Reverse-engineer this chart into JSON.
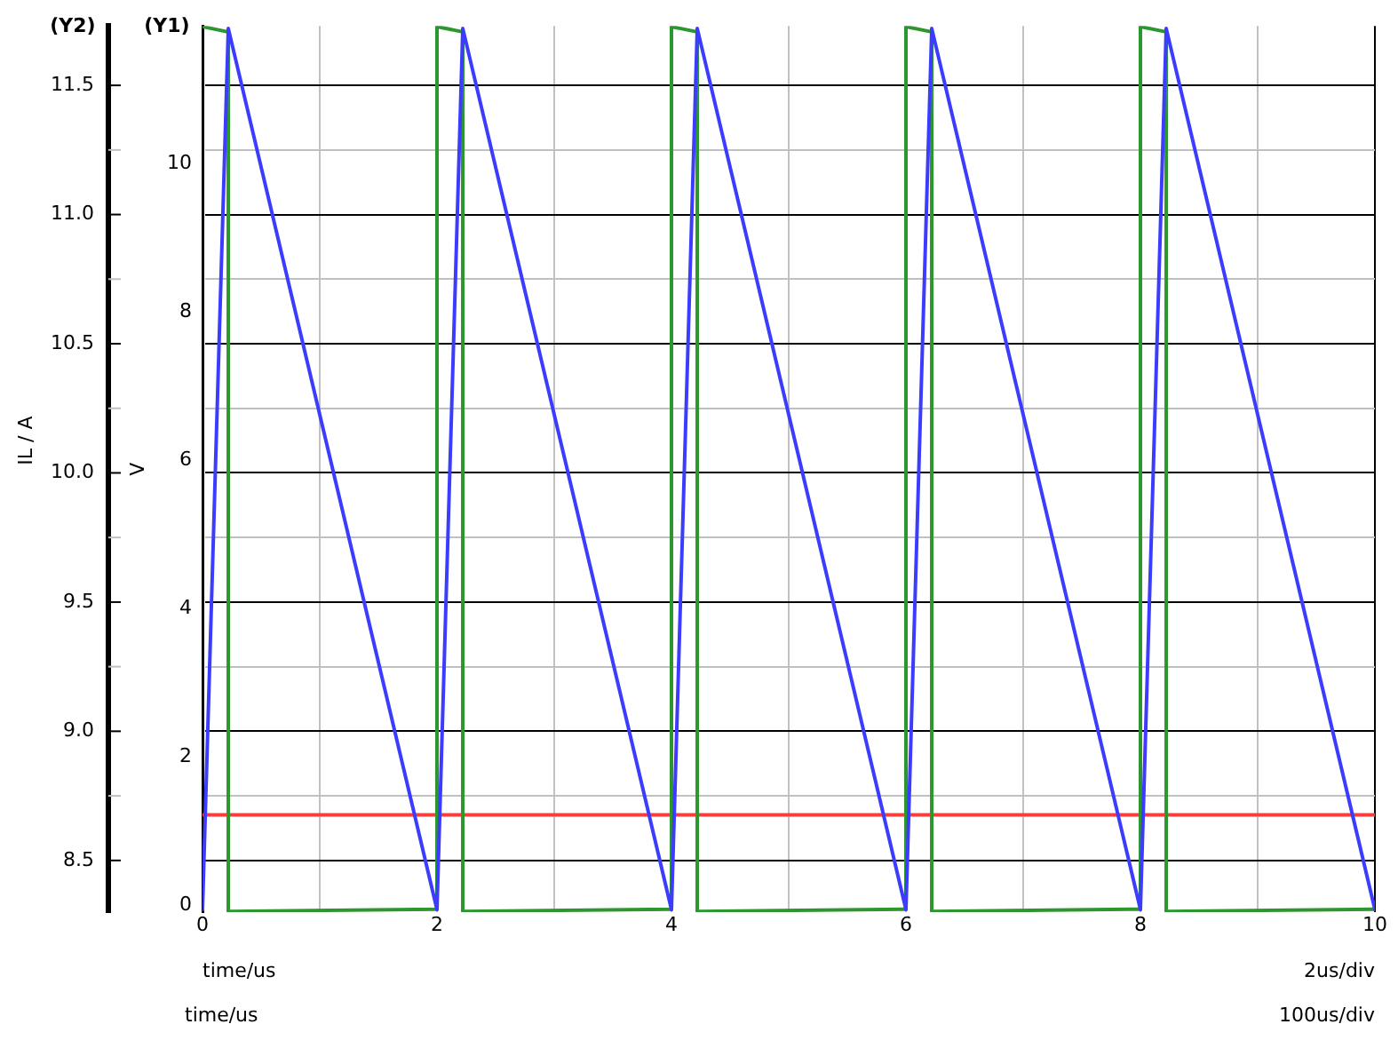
{
  "chart_data": {
    "type": "line",
    "xlabel": "time/us",
    "ylabel": "V",
    "y2label": "IL / A",
    "annotations": [
      "(Y2)",
      "(Y1)",
      "2us/div",
      "time/us",
      "100us/div"
    ],
    "xlim": [
      0,
      10
    ],
    "xticks": [
      0,
      {
        "value": 1,
        "label": null
      },
      2,
      {
        "value": 3,
        "label": null
      },
      4,
      {
        "value": 5,
        "label": null
      },
      6,
      {
        "value": 7,
        "label": null
      },
      8,
      {
        "value": 9,
        "label": null
      },
      10
    ],
    "ylim": [
      -0.09,
      11.86
    ],
    "yticks": [
      0,
      2,
      4,
      6,
      8,
      10
    ],
    "y2lim": [
      8.3,
      11.73
    ],
    "y2ticks": [
      {
        "value": 8.5,
        "label": "8.5"
      },
      {
        "value": 8.75,
        "label": null
      },
      {
        "value": 9,
        "label": "9.0"
      },
      {
        "value": 9.25,
        "label": null
      },
      {
        "value": 9.5,
        "label": "9.5"
      },
      {
        "value": 9.75,
        "label": null
      },
      {
        "value": 10,
        "label": "10.0"
      },
      {
        "value": 10.25,
        "label": null
      },
      {
        "value": 10.5,
        "label": "10.5"
      },
      {
        "value": 10.75,
        "label": null
      },
      {
        "value": 11,
        "label": "11.0"
      },
      {
        "value": 11.25,
        "label": null
      },
      {
        "value": 11.5,
        "label": "11.5"
      }
    ],
    "grid": true,
    "series": [
      {
        "color": "#3c3cff",
        "axis": "y2",
        "x": [
          0,
          0.22,
          2,
          2.22,
          4,
          4.22,
          6,
          6.22,
          8,
          8.22,
          10
        ],
        "values": [
          8.31,
          11.72,
          8.31,
          11.72,
          8.31,
          11.72,
          8.31,
          11.72,
          8.31,
          11.72,
          8.31
        ]
      },
      {
        "color": "#2e962e",
        "x": [
          0,
          0.22,
          0.22,
          2,
          2,
          2.22,
          2.22,
          4,
          4,
          4.22,
          4.22,
          6,
          6,
          6.22,
          6.22,
          8,
          8,
          8.22,
          8.22,
          10
        ],
        "values": [
          11.85,
          11.78,
          -0.08,
          -0.05,
          11.85,
          11.78,
          -0.08,
          -0.05,
          11.85,
          11.78,
          -0.08,
          -0.05,
          11.85,
          11.78,
          -0.08,
          -0.05,
          11.85,
          11.78,
          -0.08,
          -0.05
        ]
      },
      {
        "color": "#ff3c3c",
        "x": [
          0,
          10
        ],
        "values": [
          1.22,
          1.22
        ]
      }
    ]
  }
}
